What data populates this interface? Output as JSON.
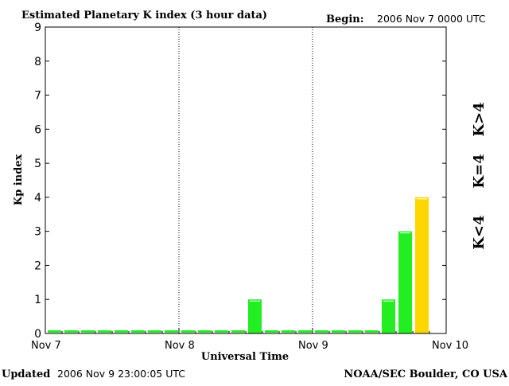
{
  "header": {
    "title": "Estimated Planetary K index (3 hour data)",
    "begin_label": "Begin:",
    "begin_value": "2006 Nov 7 0000 UTC"
  },
  "footer": {
    "updated_label": "Updated",
    "updated_value": "2006 Nov  9 23:00:05 UTC",
    "credit": "NOAA/SEC Boulder, CO USA"
  },
  "legend": {
    "k_gt4": "K>4",
    "k_eq4": "K=4",
    "k_lt4": "K<4"
  },
  "colors": {
    "low": "#22ee22",
    "moderate": "#ffd700",
    "high": "#ee3311",
    "axis": "#000000",
    "background": "#ffffff"
  },
  "chart_data": {
    "type": "bar",
    "title": "Estimated Planetary K index (3 hour data)",
    "xlabel": "Universal Time",
    "ylabel": "Kp index",
    "ylim": [
      0,
      9
    ],
    "yticks": [
      0,
      1,
      2,
      3,
      4,
      5,
      6,
      7,
      8,
      9
    ],
    "xticks": [
      "Nov 7",
      "Nov 8",
      "Nov 9",
      "Nov 10"
    ],
    "days": 3,
    "bars_per_day": 8,
    "grid": "vertical dotted lines at day boundaries",
    "values": [
      0,
      0,
      0,
      0,
      0,
      0,
      0,
      0,
      0,
      0,
      0,
      0,
      1,
      0,
      0,
      0,
      0,
      0,
      0,
      0,
      1,
      3,
      4,
      null
    ]
  }
}
